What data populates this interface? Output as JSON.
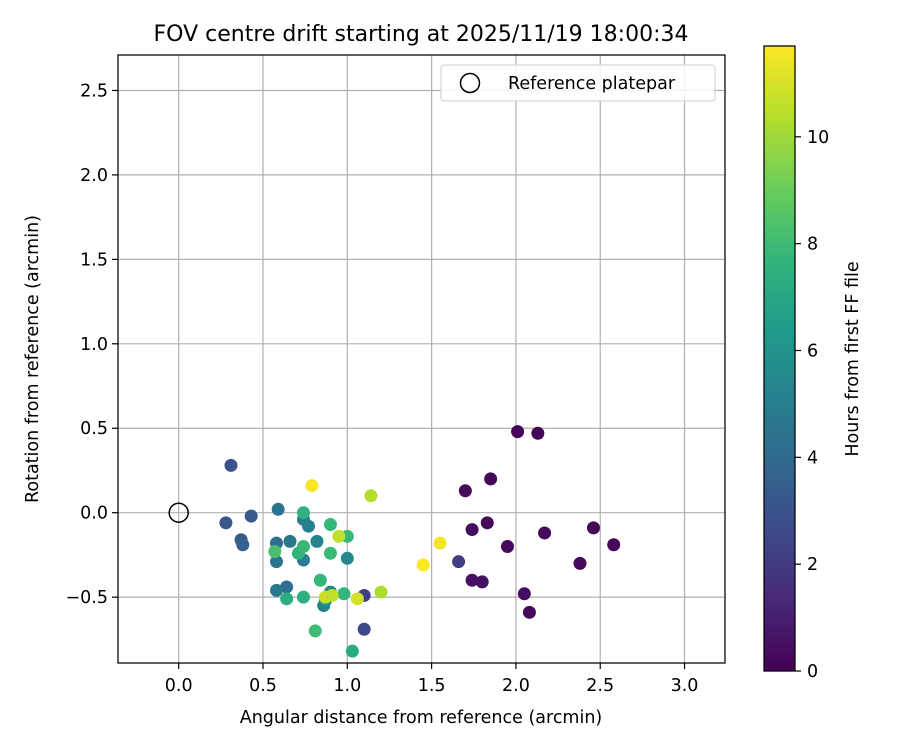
{
  "chart_data": {
    "type": "scatter",
    "title": "FOV centre drift starting at 2025/11/19 18:00:34",
    "xlabel": "Angular distance from reference (arcmin)",
    "ylabel": "Rotation from reference (arcmin)",
    "xlim": [
      -0.36,
      3.24
    ],
    "ylim": [
      -0.89,
      2.71
    ],
    "xticks": [
      0.0,
      0.5,
      1.0,
      1.5,
      2.0,
      2.5,
      3.0
    ],
    "xtick_labels": [
      "0.0",
      "0.5",
      "1.0",
      "1.5",
      "2.0",
      "2.5",
      "3.0"
    ],
    "yticks": [
      -0.5,
      0.0,
      0.5,
      1.0,
      1.5,
      2.0,
      2.5
    ],
    "ytick_labels": [
      "−0.5",
      "0.0",
      "0.5",
      "1.0",
      "1.5",
      "2.0",
      "2.5"
    ],
    "grid": true,
    "legend": {
      "label": "Reference platepar",
      "position": "top-right"
    },
    "reference_point": {
      "x": 0.0,
      "y": 0.0
    },
    "colorbar": {
      "label": "Hours from first FF file",
      "min": 0,
      "max": 11.7,
      "ticks": [
        0,
        2,
        4,
        6,
        8,
        10
      ],
      "tick_labels": [
        "0",
        "2",
        "4",
        "6",
        "8",
        "10"
      ],
      "colormap": "viridis",
      "stops": [
        "#440154",
        "#482878",
        "#3e4989",
        "#31688e",
        "#26828e",
        "#1f9e89",
        "#35b779",
        "#6ece58",
        "#b5de2b",
        "#fde725"
      ]
    },
    "points": [
      {
        "x": 2.01,
        "y": 0.48,
        "h": 0.1
      },
      {
        "x": 2.13,
        "y": 0.47,
        "h": 0.1
      },
      {
        "x": 1.85,
        "y": 0.2,
        "h": 0.2
      },
      {
        "x": 1.7,
        "y": 0.13,
        "h": 0.3
      },
      {
        "x": 1.83,
        "y": -0.06,
        "h": 0.3
      },
      {
        "x": 1.74,
        "y": -0.1,
        "h": 0.4
      },
      {
        "x": 2.46,
        "y": -0.09,
        "h": 0.2
      },
      {
        "x": 2.17,
        "y": -0.12,
        "h": 0.3
      },
      {
        "x": 2.58,
        "y": -0.19,
        "h": 0.2
      },
      {
        "x": 1.95,
        "y": -0.2,
        "h": 0.3
      },
      {
        "x": 2.38,
        "y": -0.3,
        "h": 0.3
      },
      {
        "x": 1.74,
        "y": -0.4,
        "h": 0.5
      },
      {
        "x": 1.8,
        "y": -0.41,
        "h": 0.5
      },
      {
        "x": 2.05,
        "y": -0.48,
        "h": 0.4
      },
      {
        "x": 2.08,
        "y": -0.59,
        "h": 0.3
      },
      {
        "x": 1.66,
        "y": -0.29,
        "h": 2.2
      },
      {
        "x": 1.1,
        "y": -0.49,
        "h": 2.3
      },
      {
        "x": 1.1,
        "y": -0.69,
        "h": 2.6
      },
      {
        "x": 0.31,
        "y": 0.28,
        "h": 3.0
      },
      {
        "x": 0.43,
        "y": -0.02,
        "h": 3.3
      },
      {
        "x": 0.28,
        "y": -0.06,
        "h": 3.2
      },
      {
        "x": 0.37,
        "y": -0.16,
        "h": 3.5
      },
      {
        "x": 0.38,
        "y": -0.19,
        "h": 3.6
      },
      {
        "x": 0.59,
        "y": 0.02,
        "h": 4.5
      },
      {
        "x": 0.58,
        "y": -0.18,
        "h": 4.2
      },
      {
        "x": 0.66,
        "y": -0.17,
        "h": 4.7
      },
      {
        "x": 0.58,
        "y": -0.29,
        "h": 4.4
      },
      {
        "x": 0.64,
        "y": -0.44,
        "h": 4.2
      },
      {
        "x": 0.58,
        "y": -0.46,
        "h": 4.8
      },
      {
        "x": 0.74,
        "y": -0.04,
        "h": 5.0
      },
      {
        "x": 0.77,
        "y": -0.08,
        "h": 5.1
      },
      {
        "x": 0.74,
        "y": -0.28,
        "h": 5.0
      },
      {
        "x": 0.82,
        "y": -0.17,
        "h": 5.3
      },
      {
        "x": 0.86,
        "y": -0.55,
        "h": 5.1
      },
      {
        "x": 1.0,
        "y": -0.27,
        "h": 5.5
      },
      {
        "x": 0.87,
        "y": -0.52,
        "h": 5.8
      },
      {
        "x": 0.9,
        "y": -0.47,
        "h": 5.5
      },
      {
        "x": 0.74,
        "y": 0.0,
        "h": 7.5
      },
      {
        "x": 0.71,
        "y": -0.24,
        "h": 7.6
      },
      {
        "x": 0.74,
        "y": -0.2,
        "h": 7.8
      },
      {
        "x": 0.57,
        "y": -0.23,
        "h": 8.3
      },
      {
        "x": 0.64,
        "y": -0.51,
        "h": 7.3
      },
      {
        "x": 0.74,
        "y": -0.5,
        "h": 7.4
      },
      {
        "x": 0.84,
        "y": -0.4,
        "h": 7.8
      },
      {
        "x": 0.9,
        "y": -0.07,
        "h": 7.8
      },
      {
        "x": 1.0,
        "y": -0.14,
        "h": 7.8
      },
      {
        "x": 0.9,
        "y": -0.24,
        "h": 7.9
      },
      {
        "x": 0.98,
        "y": -0.48,
        "h": 7.7
      },
      {
        "x": 0.81,
        "y": -0.7,
        "h": 8.0
      },
      {
        "x": 1.03,
        "y": -0.82,
        "h": 7.1
      },
      {
        "x": 0.95,
        "y": -0.14,
        "h": 10.6
      },
      {
        "x": 0.87,
        "y": -0.5,
        "h": 10.8
      },
      {
        "x": 0.91,
        "y": -0.49,
        "h": 10.6
      },
      {
        "x": 1.06,
        "y": -0.51,
        "h": 10.9
      },
      {
        "x": 1.2,
        "y": -0.47,
        "h": 10.2
      },
      {
        "x": 1.14,
        "y": 0.1,
        "h": 10.4
      },
      {
        "x": 0.79,
        "y": 0.16,
        "h": 11.6
      },
      {
        "x": 1.55,
        "y": -0.18,
        "h": 11.5
      },
      {
        "x": 1.45,
        "y": -0.31,
        "h": 11.7
      }
    ]
  }
}
